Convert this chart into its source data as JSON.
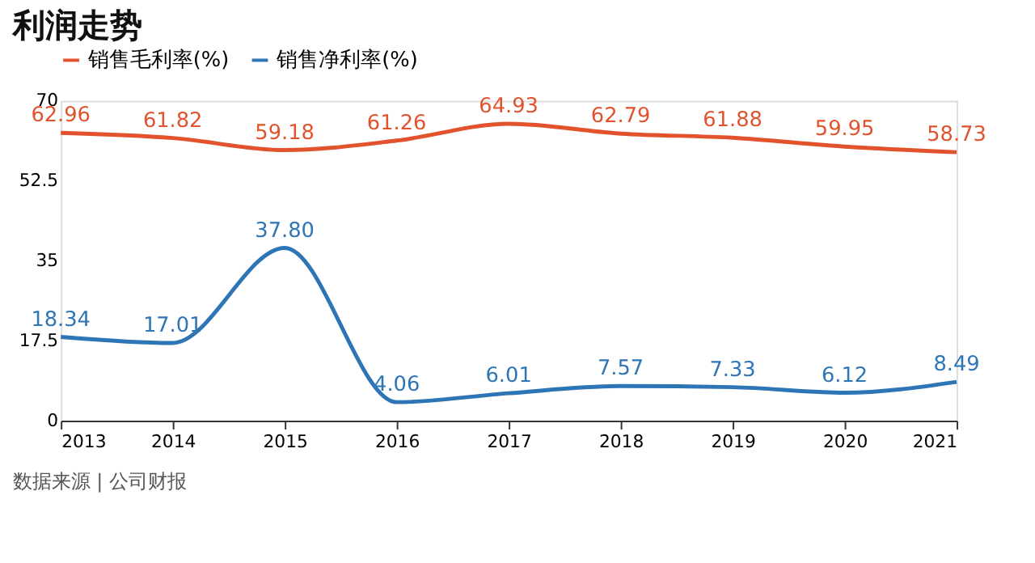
{
  "chart_data": {
    "type": "line",
    "title": "利润走势",
    "categories": [
      "2013",
      "2014",
      "2015",
      "2016",
      "2017",
      "2018",
      "2019",
      "2020",
      "2021"
    ],
    "series": [
      {
        "name": "销售毛利率(%)",
        "color": "#e2532d",
        "values": [
          62.96,
          61.82,
          59.18,
          61.26,
          64.93,
          62.79,
          61.88,
          59.95,
          58.73
        ],
        "value_labels": [
          "62.96",
          "61.82",
          "59.18",
          "61.26",
          "64.93",
          "62.79",
          "61.88",
          "59.95",
          "58.73"
        ]
      },
      {
        "name": "销售净利率(%)",
        "color": "#2e75b6",
        "values": [
          18.34,
          17.01,
          37.8,
          4.06,
          6.01,
          7.57,
          7.33,
          6.12,
          8.49
        ],
        "value_labels": [
          "18.34",
          "17.01",
          "37.80",
          "4.06",
          "6.01",
          "7.57",
          "7.33",
          "6.12",
          "8.49"
        ]
      }
    ],
    "ylim": [
      0,
      70
    ],
    "yticks": [
      0,
      17.5,
      35,
      52.5,
      70
    ],
    "grid": false,
    "legend": "top left",
    "marker": "none",
    "line_style": "solid",
    "annotations": [
      "数据来源 | 公司财报"
    ]
  }
}
